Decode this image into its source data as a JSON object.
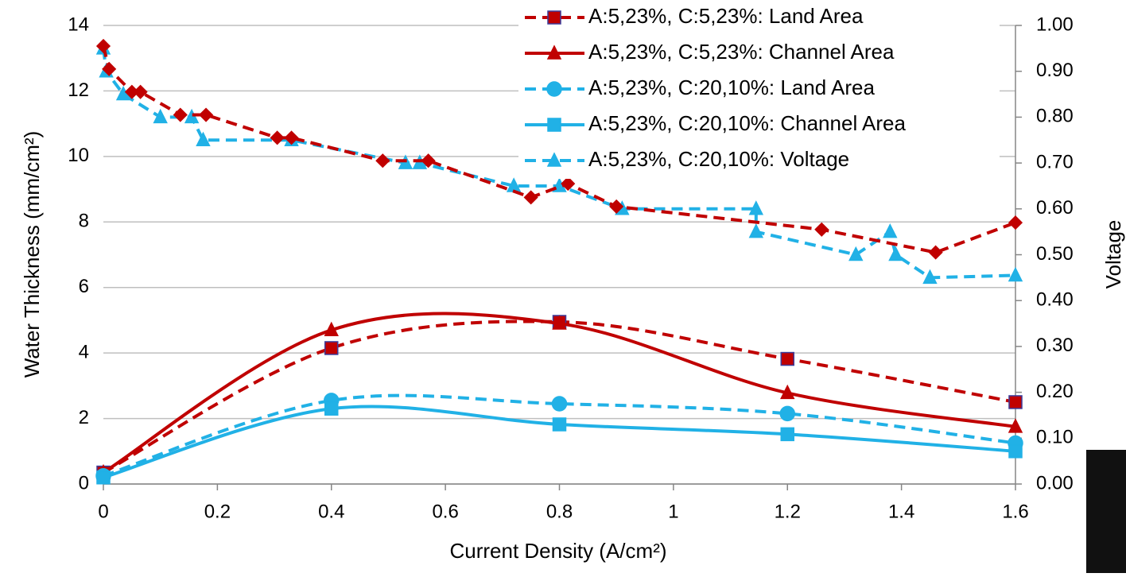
{
  "chart_data": {
    "type": "line",
    "xlabel": "Current Density (A/cm²)",
    "ylabel": "Water Thickness (mm/cm²)",
    "y2label": "Voltage",
    "xlim": [
      0,
      1.6
    ],
    "xticks": [
      0,
      0.2,
      0.4,
      0.6,
      0.8,
      1,
      1.2,
      1.4,
      1.6
    ],
    "ylim": [
      0,
      14
    ],
    "yticks": [
      0,
      2,
      4,
      6,
      8,
      10,
      12,
      14
    ],
    "y2lim": [
      0,
      1
    ],
    "y2ticks": [
      {
        "value": 0,
        "label": "0.00"
      },
      {
        "value": 0.1,
        "label": "0.10"
      },
      {
        "value": 0.2,
        "label": "0.20"
      },
      {
        "value": 0.3,
        "label": "0.30"
      },
      {
        "value": 0.4,
        "label": "0.40"
      },
      {
        "value": 0.5,
        "label": "0.50"
      },
      {
        "value": 0.6,
        "label": "0.60"
      },
      {
        "value": 0.7,
        "label": "0.70"
      },
      {
        "value": 0.8,
        "label": "0.80"
      },
      {
        "value": 0.9,
        "label": "0.90"
      },
      {
        "value": 1,
        "label": "1.00"
      }
    ],
    "grid": true,
    "legend": "top-right",
    "series": [
      {
        "name": "A:5,23%, C:5,23%: Land Area",
        "color": "#c00000",
        "dash": true,
        "marker": "square",
        "smooth": true,
        "x": [
          0,
          0.4,
          0.8,
          1.2,
          1.6
        ],
        "values": [
          0.35,
          4.15,
          4.95,
          3.82,
          2.5
        ]
      },
      {
        "name": "A:5,23%, C:5,23%: Channel Area",
        "color": "#c00000",
        "dash": false,
        "marker": "triangle",
        "smooth": true,
        "x": [
          0,
          0.4,
          0.8,
          1.2,
          1.6
        ],
        "values": [
          0.35,
          4.7,
          4.9,
          2.78,
          1.75
        ]
      },
      {
        "name": "A:5,23%, C:20,10%: Land Area",
        "color": "#21b1e6",
        "dash": true,
        "marker": "circle",
        "smooth": true,
        "x": [
          0,
          0.4,
          0.8,
          1.2,
          1.6
        ],
        "values": [
          0.25,
          2.55,
          2.45,
          2.15,
          1.25
        ]
      },
      {
        "name": "A:5,23%, C:20,10%: Channel Area",
        "color": "#21b1e6",
        "dash": false,
        "marker": "square",
        "smooth": true,
        "x": [
          0,
          0.4,
          0.8,
          1.2,
          1.6
        ],
        "values": [
          0.2,
          2.3,
          1.82,
          1.52,
          1.0
        ]
      },
      {
        "name": "A:5,23%, C:20,10%: Voltage",
        "color": "#21b1e6",
        "dash": true,
        "marker": "triangle",
        "smooth": false,
        "axis": "y2",
        "x": [
          0,
          0.005,
          0.035,
          0.1,
          0.155,
          0.175,
          0.33,
          0.53,
          0.555,
          0.72,
          0.8,
          0.91,
          1.145,
          1.145,
          1.32,
          1.38,
          1.39,
          1.45,
          1.6
        ],
        "values": [
          0.95,
          0.9,
          0.85,
          0.8,
          0.8,
          0.75,
          0.75,
          0.7,
          0.7,
          0.65,
          0.65,
          0.6,
          0.6,
          0.55,
          0.5,
          0.55,
          0.5,
          0.45,
          0.455
        ]
      },
      {
        "color": "#c00000",
        "dash": true,
        "marker": "diamond",
        "smooth": false,
        "axis": "y2",
        "x": [
          0,
          0.01,
          0.05,
          0.065,
          0.135,
          0.18,
          0.305,
          0.33,
          0.49,
          0.57,
          0.75,
          0.815,
          0.9,
          1.26,
          1.46,
          1.6
        ],
        "values": [
          0.955,
          0.905,
          0.855,
          0.855,
          0.805,
          0.805,
          0.755,
          0.755,
          0.705,
          0.705,
          0.625,
          0.655,
          0.605,
          0.555,
          0.505,
          0.57
        ]
      }
    ]
  }
}
